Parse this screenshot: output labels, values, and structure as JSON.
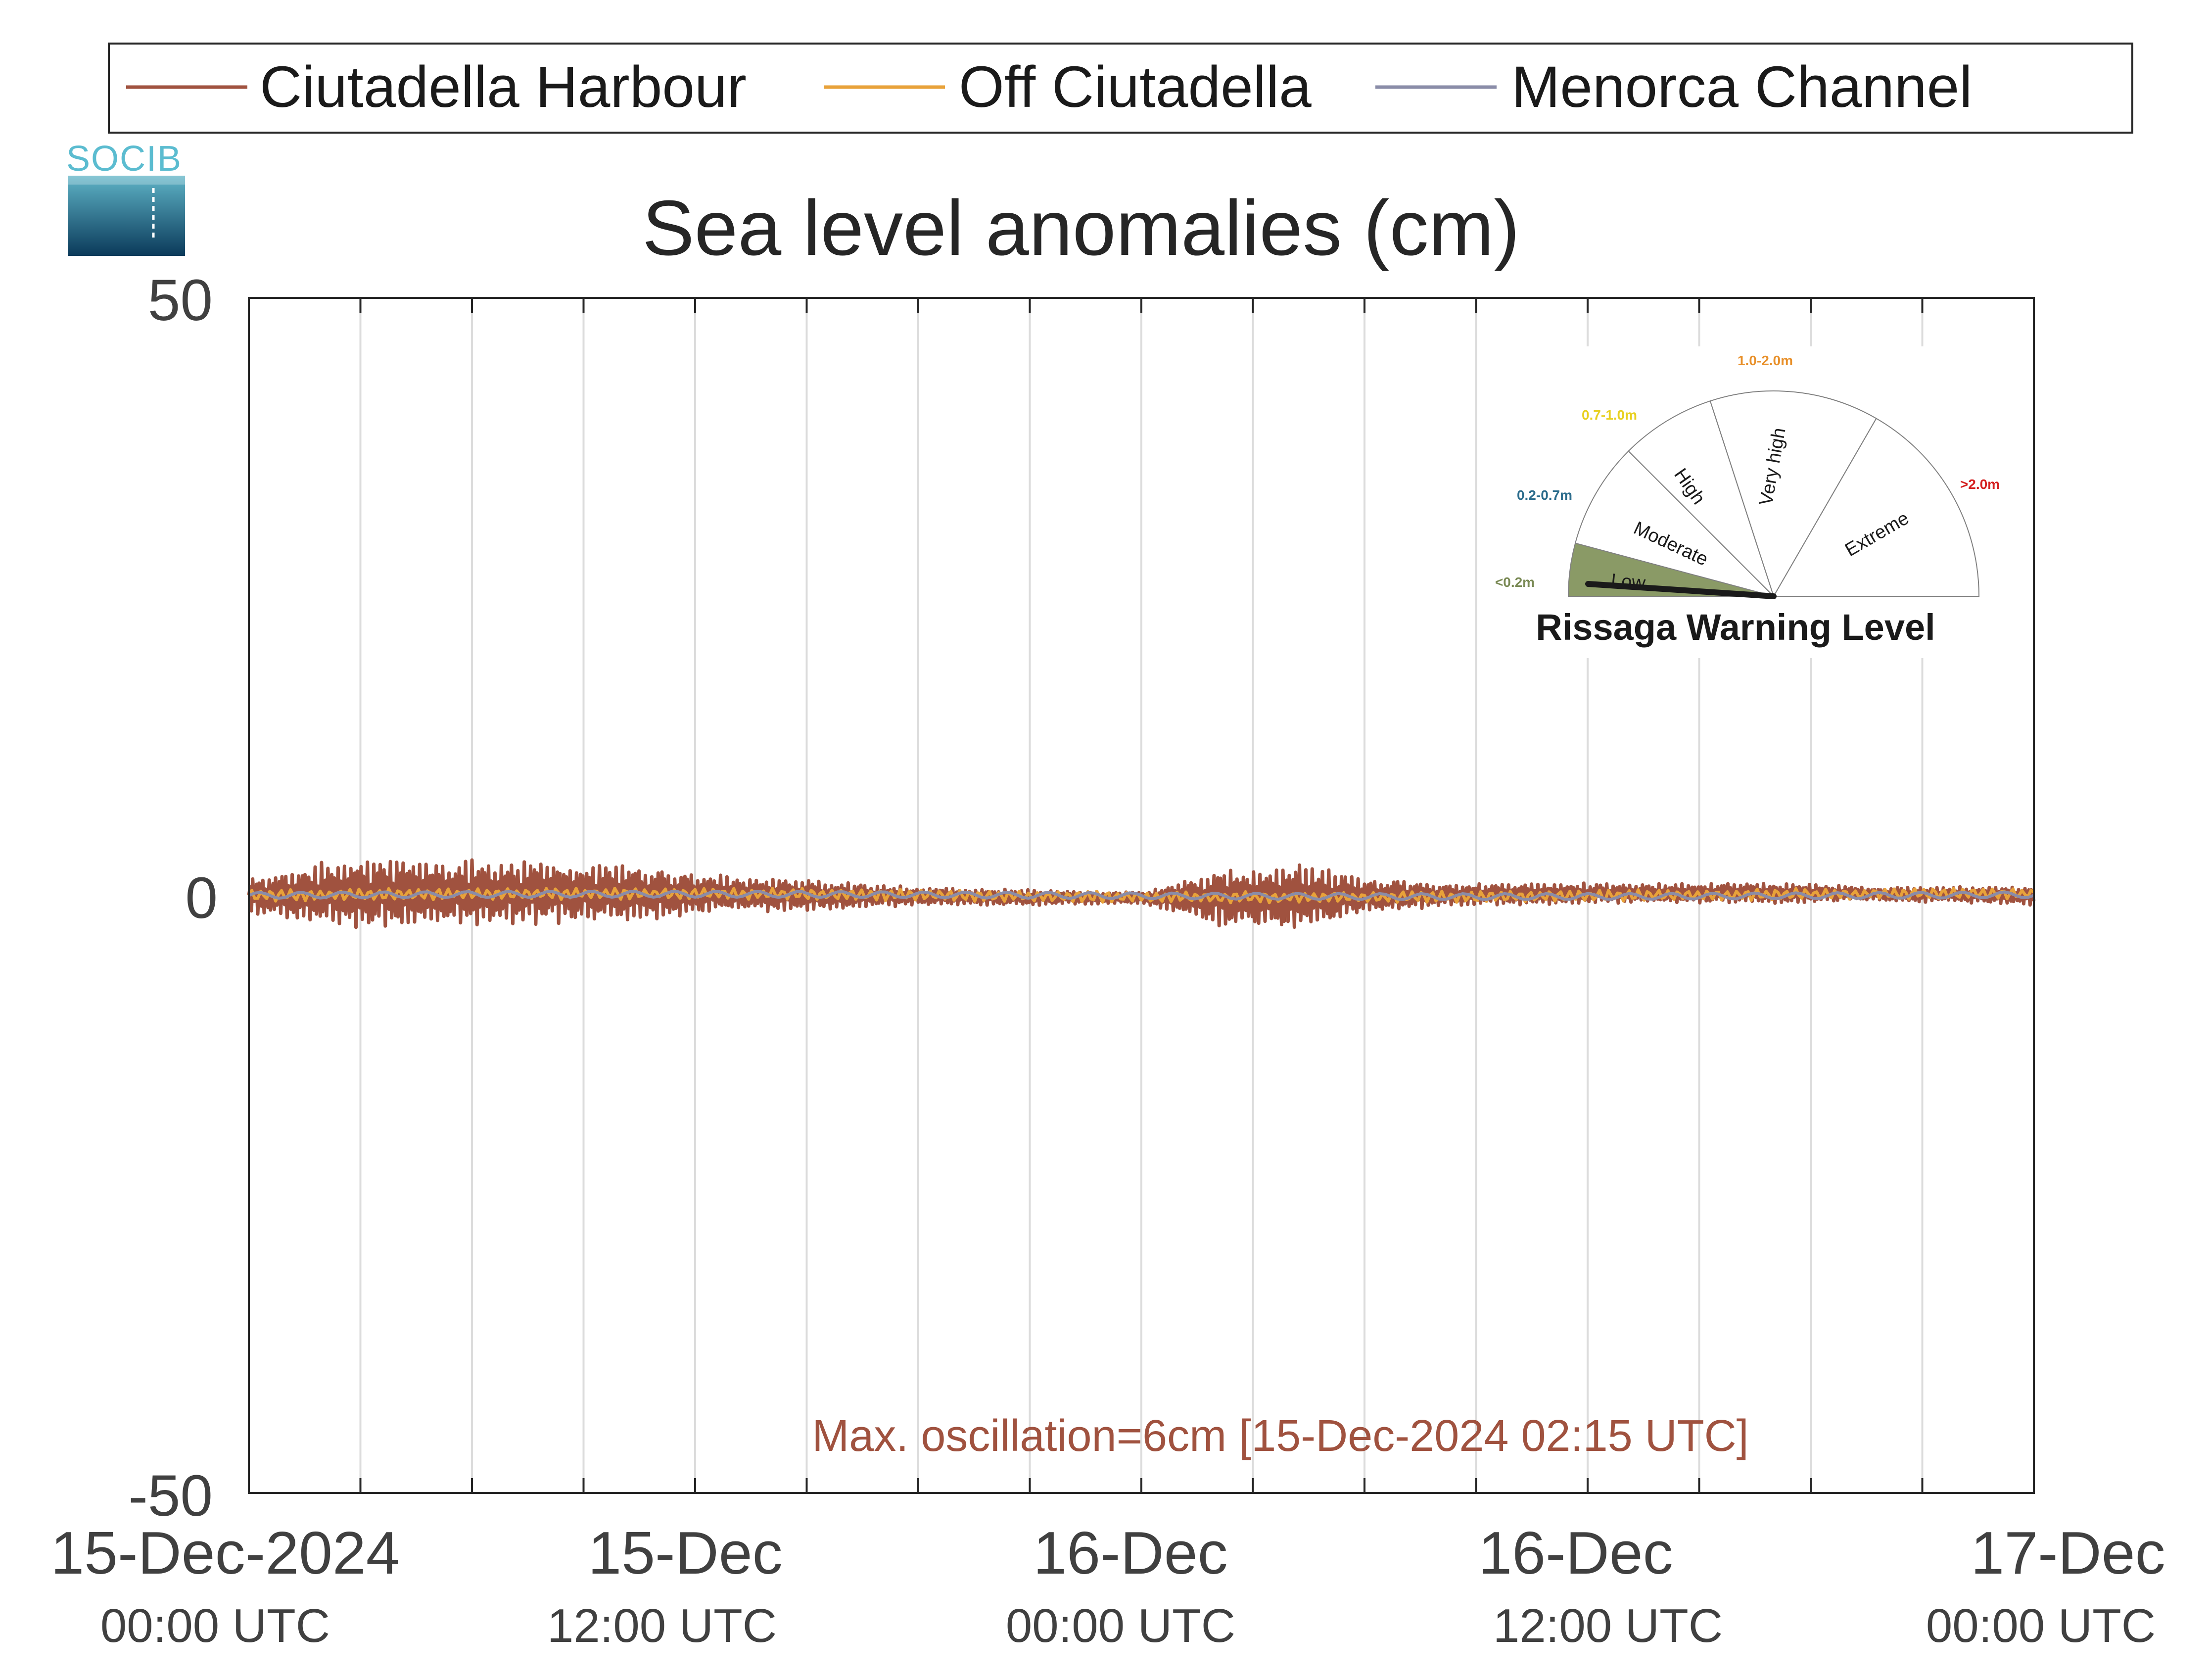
{
  "chart_data": {
    "type": "line",
    "title": "Sea level anomalies (cm)",
    "xlabel": "",
    "ylabel": "",
    "ylim": [
      -50,
      50
    ],
    "yticks": [
      "50",
      "0",
      "-50"
    ],
    "x_range": [
      "15-Dec-2024 00:00 UTC",
      "17-Dec-2024 00:00 UTC"
    ],
    "x_ticks": [
      {
        "date": "15-Dec-2024",
        "time": "00:00 UTC"
      },
      {
        "date": "15-Dec",
        "time": "12:00 UTC"
      },
      {
        "date": "16-Dec",
        "time": "00:00 UTC"
      },
      {
        "date": "16-Dec",
        "time": "12:00 UTC"
      },
      {
        "date": "17-Dec",
        "time": "00:00 UTC"
      }
    ],
    "grid": "vertical, every 3 hours",
    "legend_position": "top",
    "series": [
      {
        "name": "Ciutadella Harbour",
        "color": "#a0523f",
        "envelope_hours": [
          0,
          2,
          4,
          6,
          8,
          10,
          12,
          14,
          16,
          18,
          20,
          22,
          24,
          26,
          28,
          30,
          32,
          34,
          36,
          38,
          40,
          42,
          44,
          46,
          48
        ],
        "envelope_amplitude_cm": [
          1.5,
          2.8,
          3.0,
          2.8,
          2.6,
          2.5,
          1.8,
          1.5,
          1.2,
          0.8,
          0.7,
          0.6,
          0.5,
          2.5,
          3.0,
          1.6,
          1.0,
          0.9,
          0.9,
          0.8,
          0.9,
          0.8,
          0.6,
          0.7,
          0.8
        ]
      },
      {
        "name": "Off Ciutadella",
        "color": "#e8a23a",
        "amplitude_cm": 0.5
      },
      {
        "name": "Menorca Channel",
        "color": "#8a8ca8",
        "amplitude_cm": 0.25
      }
    ],
    "annotation": {
      "text": "Max. oscillation=6cm [15-Dec-2024 02:15 UTC]",
      "color": "#a0523f"
    }
  },
  "logo": {
    "text": "SOCIB"
  },
  "gauge": {
    "title": "Rissaga Warning Level",
    "current_level": "Low",
    "needle_value_m": 0.0,
    "segments": [
      {
        "label": "Low",
        "range": "<0.2m",
        "range_color": "#7a8a55",
        "fill": "#8a9a66",
        "active": true
      },
      {
        "label": "Moderate",
        "range": "0.2-0.7m",
        "range_color": "#2b6c8c",
        "fill": "#ffffff",
        "active": false
      },
      {
        "label": "High",
        "range": "0.7-1.0m",
        "range_color": "#e8d020",
        "fill": "#ffffff",
        "active": false
      },
      {
        "label": "Very high",
        "range": "1.0-2.0m",
        "range_color": "#e8902a",
        "fill": "#ffffff",
        "active": false
      },
      {
        "label": "Extreme",
        "range": ">2.0m",
        "range_color": "#d42020",
        "fill": "#ffffff",
        "active": false
      }
    ]
  }
}
